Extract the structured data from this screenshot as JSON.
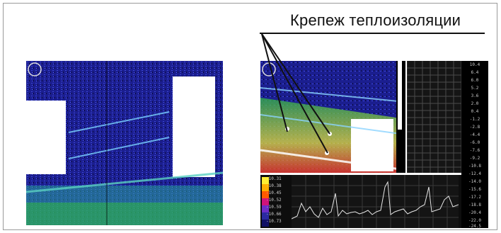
{
  "caption": {
    "text": "Крепеж теплоизоляции"
  },
  "right_scale": {
    "ticks": [
      "10.4",
      "6.4",
      "6.0",
      "5.2",
      "3.6",
      "2.0",
      "0.4",
      "-1.2",
      "-2.8",
      "-4.4",
      "-6.0",
      "-7.6",
      "-9.2",
      "-10.8",
      "-12.4",
      "-14.0",
      "-15.6",
      "-17.2",
      "-18.8",
      "-20.4",
      "-22.0",
      "-24.5"
    ]
  },
  "profile_scale": {
    "ticks": [
      "-10.31",
      "-10.38",
      "-10.45",
      "-10.52",
      "-10.59",
      "-10.66",
      "-10.73"
    ]
  },
  "colors": {
    "cold": "#1b1e8f",
    "cool": "#3c48d6",
    "mid": "#2fb24a",
    "warm": "#e8e23a",
    "hot": "#ff3b12",
    "white": "#ffffff"
  }
}
